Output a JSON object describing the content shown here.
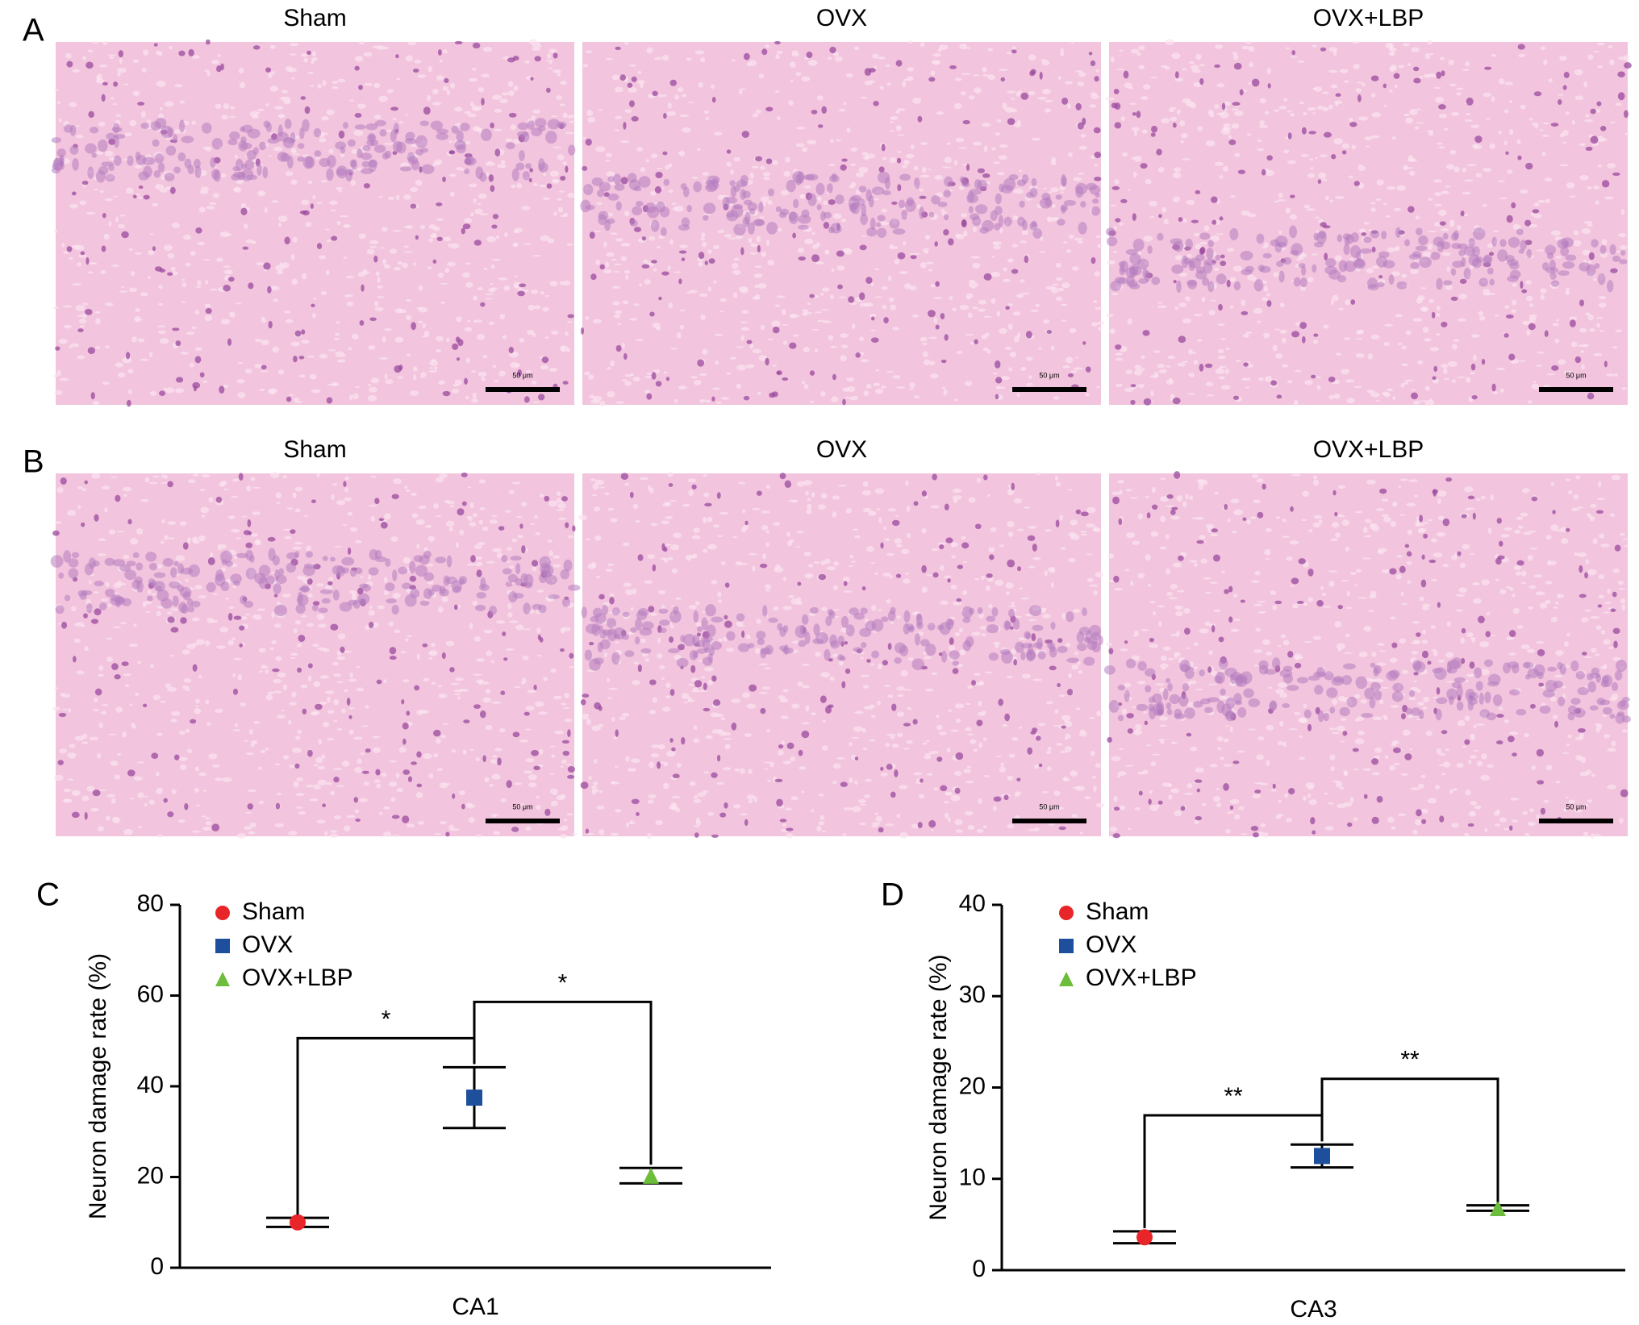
{
  "panels": [
    {
      "letter": "A",
      "images": [
        {
          "title": "Sham"
        },
        {
          "title": "OVX"
        },
        {
          "title": "OVX+LBP"
        }
      ]
    },
    {
      "letter": "B",
      "images": [
        {
          "title": "Sham"
        },
        {
          "title": "OVX"
        },
        {
          "title": "OVX+LBP"
        }
      ]
    }
  ],
  "scale_bar_label": "50 μm",
  "chart_data": [
    {
      "panel": "C",
      "type": "scatter",
      "categories": [
        "CA1"
      ],
      "ylabel": "Neuron damage rate (%)",
      "ylim": [
        0,
        80
      ],
      "yticks": [
        0,
        20,
        40,
        60,
        80
      ],
      "series": [
        {
          "name": "Sham",
          "color": "#e8262a",
          "marker": "circle",
          "values": [
            10
          ],
          "errors": [
            1
          ]
        },
        {
          "name": "OVX",
          "color": "#1d4f9c",
          "marker": "square",
          "values": [
            37.5
          ],
          "errors": [
            6.7
          ]
        },
        {
          "name": "OVX+LBP",
          "color": "#6cbd3b",
          "marker": "triangle",
          "values": [
            20.3
          ],
          "errors": [
            1.7
          ]
        }
      ],
      "annotations": [
        {
          "text": "*",
          "pair": [
            0,
            1
          ]
        },
        {
          "text": "*",
          "pair": [
            1,
            2
          ]
        }
      ]
    },
    {
      "panel": "D",
      "type": "scatter",
      "categories": [
        "CA3"
      ],
      "ylabel": "Neuron damage rate (%)",
      "ylim": [
        0,
        40
      ],
      "yticks": [
        0,
        10,
        20,
        30,
        40
      ],
      "series": [
        {
          "name": "Sham",
          "color": "#e8262a",
          "marker": "circle",
          "values": [
            3.6
          ],
          "errors": [
            0.65
          ]
        },
        {
          "name": "OVX",
          "color": "#1d4f9c",
          "marker": "square",
          "values": [
            12.5
          ],
          "errors": [
            1.25
          ]
        },
        {
          "name": "OVX+LBP",
          "color": "#6cbd3b",
          "marker": "triangle",
          "values": [
            6.8
          ],
          "errors": [
            0.3
          ]
        }
      ],
      "annotations": [
        {
          "text": "**",
          "pair": [
            0,
            1
          ]
        },
        {
          "text": "**",
          "pair": [
            1,
            2
          ]
        }
      ]
    }
  ]
}
